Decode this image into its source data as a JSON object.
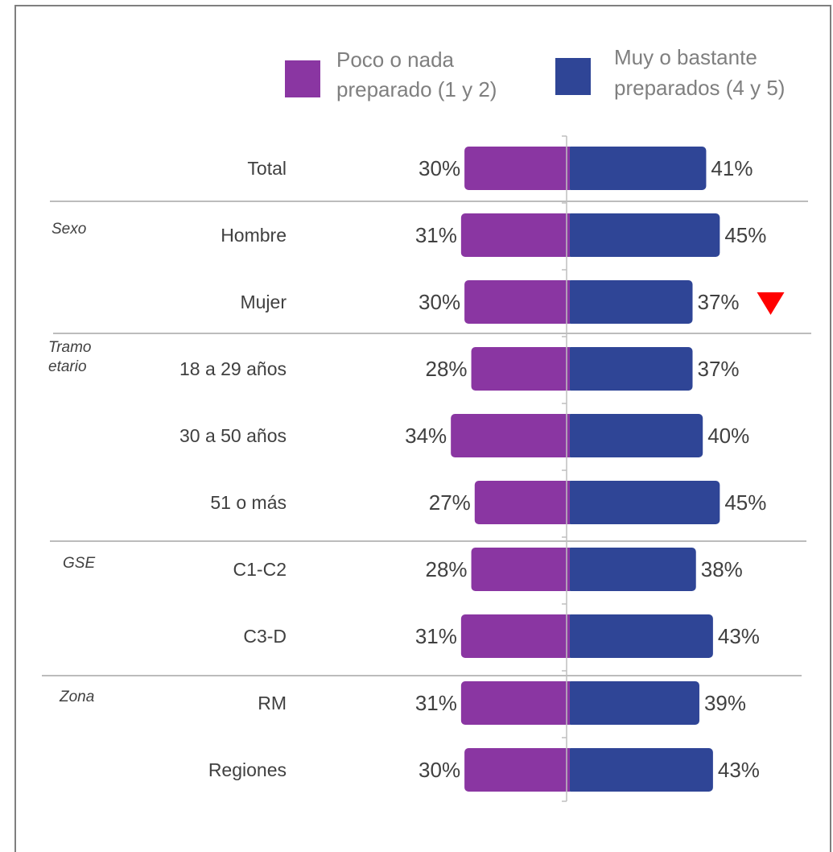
{
  "colors": {
    "poco": "#8a36a2",
    "muy": "#2f4596",
    "separator": "#a6a6a6",
    "axis": "#bfbfbf",
    "alert": "#ff0000"
  },
  "chart_data": {
    "type": "bar",
    "orientation": "horizontal-diverging",
    "grid": false,
    "legend_position": "top",
    "title": "",
    "xlabel": "",
    "ylabel": "",
    "xlim": [
      -35,
      45
    ],
    "series": [
      {
        "name": "Poco o nada preparado (1 y 2)",
        "legend_lines": [
          "Poco o nada",
          "preparado (1 y 2)"
        ],
        "color": "#8a36a2",
        "values": [
          30,
          31,
          30,
          28,
          34,
          27,
          28,
          31,
          31,
          30
        ],
        "labels": [
          "30%",
          "31%",
          "30%",
          "28%",
          "34%",
          "27%",
          "28%",
          "31%",
          "31%",
          "30%"
        ]
      },
      {
        "name": "Muy o bastante preparados (4 y 5)",
        "legend_lines": [
          "Muy o bastante",
          "preparados (4 y 5)"
        ],
        "color": "#2f4596",
        "values": [
          41,
          45,
          37,
          37,
          40,
          45,
          38,
          43,
          39,
          43
        ],
        "labels": [
          "41%",
          "45%",
          "37%",
          "37%",
          "40%",
          "45%",
          "38%",
          "43%",
          "39%",
          "43%"
        ]
      }
    ],
    "categories": [
      "Total",
      "Hombre",
      "Mujer",
      "18 a 29 años",
      "30 a 50 años",
      "51 o más",
      "C1-C2",
      "C3-D",
      "RM",
      "Regiones"
    ],
    "groups": [
      {
        "lines": [
          "Sexo"
        ],
        "start_index": 1
      },
      {
        "lines": [
          "Tramo",
          "etario"
        ],
        "start_index": 3
      },
      {
        "lines": [
          "GSE"
        ],
        "start_index": 6
      },
      {
        "lines": [
          "Zona"
        ],
        "start_index": 8
      }
    ],
    "annotations": [
      {
        "category": "Mujer",
        "series": "Muy o bastante preparados (4 y 5)",
        "marker": "down-triangle",
        "color": "#ff0000"
      }
    ]
  }
}
